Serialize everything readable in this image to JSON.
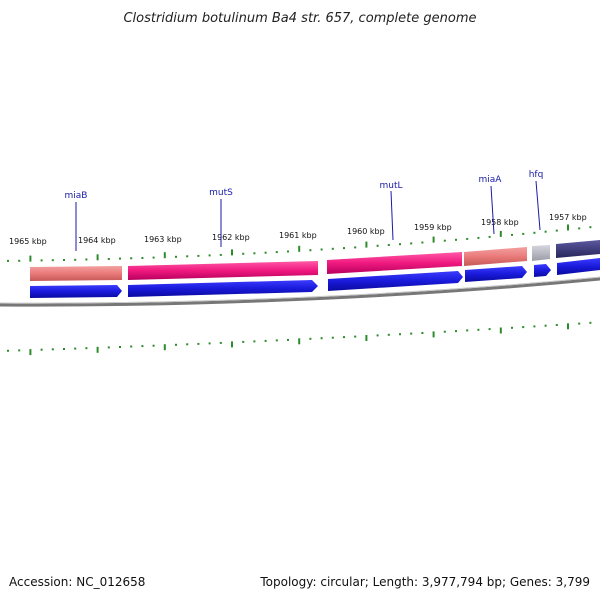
{
  "title": "Clostridium botulinum Ba4 str. 657, complete genome",
  "footer": {
    "accession": "Accession: NC_012658",
    "topology": "Topology: circular; Length: 3,977,794 bp; Genes: 3,799"
  },
  "tick_labels": [
    "1965 kbp",
    "1964 kbp",
    "1963 kbp",
    "1962 kbp",
    "1961 kbp",
    "1960 kbp",
    "1959 kbp",
    "1958 kbp",
    "1957 kbp"
  ],
  "gene_labels": [
    "miaB",
    "mutS",
    "mutL",
    "miaA",
    "hfq"
  ],
  "colors": {
    "backbone": "#8a8a8a",
    "cds_blue": "#1a1adb",
    "gene_pink": "#f0197f",
    "gene_salmon": "#ea7a7a",
    "gene_gray": "#b9b9c2",
    "gene_navy": "#3c3a78",
    "tick_green": "#2c8c2c",
    "label_blue": "#1a1aa8"
  }
}
